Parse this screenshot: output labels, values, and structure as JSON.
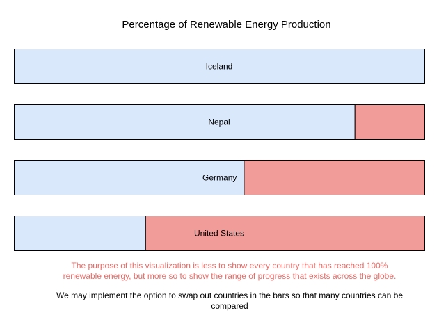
{
  "chart_data": {
    "type": "bar",
    "orientation": "horizontal",
    "stacked": true,
    "title": "Percentage of Renewable Energy Production",
    "xlim": [
      0,
      100
    ],
    "categories": [
      "Iceland",
      "Nepal",
      "Germany",
      "United States"
    ],
    "series": [
      {
        "values": [
          100,
          83,
          56,
          32
        ],
        "color": "#dae8fc"
      },
      {
        "values": [
          0,
          17,
          44,
          68
        ],
        "color": "#f19c99"
      }
    ],
    "grid": false
  },
  "notes": {
    "red": "The purpose of this visualization is less to show every country that has reached 100% renewable energy, but more so to show the range of progress that exists across the globe.",
    "black": "We may implement the option to swap out countries in the bars so that many countries can be compared"
  },
  "colors": {
    "note_red": "#ea6b66",
    "border": "#000000"
  }
}
